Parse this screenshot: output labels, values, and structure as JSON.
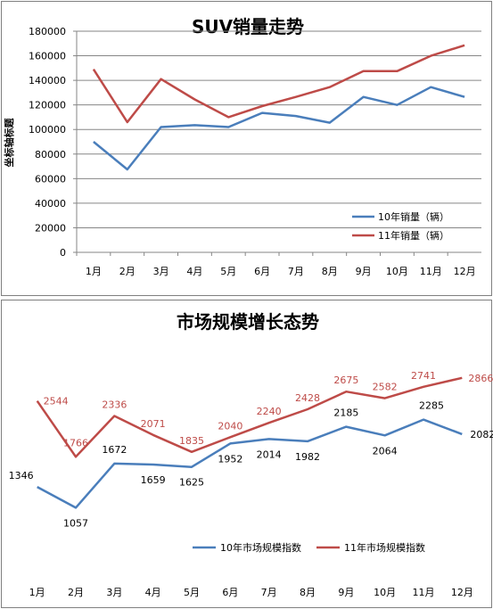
{
  "chart_data": [
    {
      "type": "line",
      "title": "SUV销量走势",
      "ylabel": "坐标轴标题",
      "categories": [
        "1月",
        "2月",
        "3月",
        "4月",
        "5月",
        "6月",
        "7月",
        "8月",
        "9月",
        "10月",
        "11月",
        "12月"
      ],
      "series": [
        {
          "name": "10年销量（辆）",
          "values": [
            90000,
            67500,
            102000,
            103500,
            102000,
            113500,
            111000,
            105500,
            126500,
            120000,
            134500,
            126500
          ]
        },
        {
          "name": "11年销量（辆）",
          "values": [
            149000,
            106000,
            141000,
            124500,
            110000,
            119000,
            126500,
            134500,
            147500,
            147500,
            160000,
            168500
          ]
        }
      ],
      "yticks": [
        "0",
        "20000",
        "40000",
        "60000",
        "80000",
        "100000",
        "120000",
        "140000",
        "160000",
        "180000"
      ],
      "ylim": [
        0,
        180000
      ],
      "grid": "horizontal",
      "legend": "bottom-right",
      "colors": [
        "#4a7ebb",
        "#be4b48"
      ]
    },
    {
      "type": "line",
      "title": "市场规模增长态势",
      "categories": [
        "1月",
        "2月",
        "3月",
        "4月",
        "5月",
        "6月",
        "7月",
        "8月",
        "9月",
        "10月",
        "11月",
        "12月"
      ],
      "series": [
        {
          "name": "10年市场规模指数",
          "values": [
            1346,
            1057,
            1672,
            1659,
            1625,
            1952,
            2014,
            1982,
            2185,
            2064,
            2285,
            2082
          ]
        },
        {
          "name": "11年市场规模指数",
          "values": [
            2544,
            1766,
            2336,
            2071,
            1835,
            2040,
            2240,
            2428,
            2675,
            2582,
            2741,
            2866
          ]
        }
      ],
      "data_labels": true,
      "grid": "none",
      "legend": "bottom",
      "colors": [
        "#4a7ebb",
        "#be4b48"
      ]
    }
  ]
}
